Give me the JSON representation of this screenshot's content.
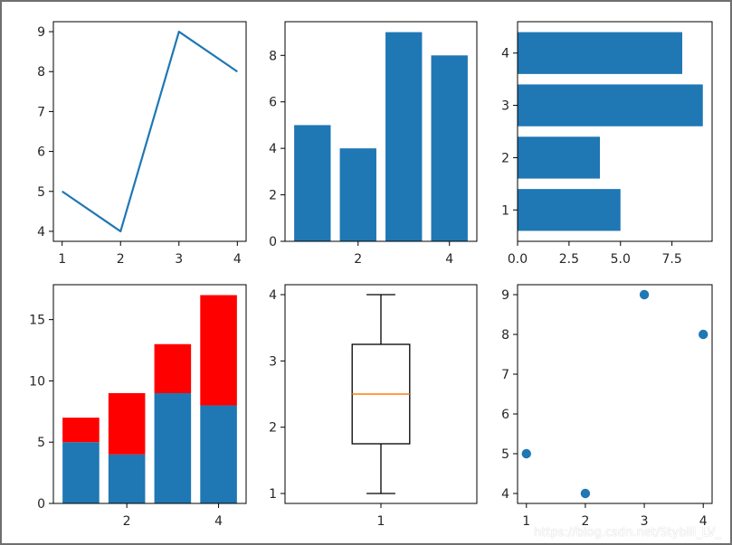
{
  "colors": {
    "primary": "#1f77b4",
    "stack_top": "#ff0000",
    "median": "#ff7f0e",
    "axis": "#000000",
    "text": "#262626"
  },
  "watermark": "https://blog.csdn.net/Stybill_LV_",
  "chart_data": [
    {
      "type": "line",
      "x": [
        1,
        2,
        3,
        4
      ],
      "y": [
        5,
        4,
        9,
        8
      ],
      "xlim": [
        0.85,
        4.15
      ],
      "ylim": [
        3.75,
        9.25
      ],
      "xticks": [
        1,
        2,
        3,
        4
      ],
      "yticks": [
        4,
        5,
        6,
        7,
        8,
        9
      ]
    },
    {
      "type": "bar",
      "categories": [
        1,
        2,
        3,
        4
      ],
      "values": [
        5,
        4,
        9,
        8
      ],
      "xlim": [
        0.4,
        4.6
      ],
      "ylim": [
        0,
        9.45
      ],
      "xticks": [
        2,
        4
      ],
      "yticks": [
        0,
        2,
        4,
        6,
        8
      ]
    },
    {
      "type": "bar",
      "orientation": "horizontal",
      "categories": [
        1,
        2,
        3,
        4
      ],
      "values": [
        5,
        4,
        9,
        8
      ],
      "xlim": [
        0,
        9.45
      ],
      "ylim": [
        0.4,
        4.6
      ],
      "xticks": [
        0.0,
        2.5,
        5.0,
        7.5
      ],
      "yticks": [
        1,
        2,
        3,
        4
      ]
    },
    {
      "type": "bar",
      "stacked": true,
      "categories": [
        1,
        2,
        3,
        4
      ],
      "series": [
        {
          "values": [
            5,
            4,
            9,
            8
          ]
        },
        {
          "values": [
            2,
            5,
            4,
            9
          ]
        }
      ],
      "xlim": [
        0.4,
        4.6
      ],
      "ylim": [
        0,
        17.85
      ],
      "xticks": [
        2,
        4
      ],
      "yticks": [
        0,
        5,
        10,
        15
      ]
    },
    {
      "type": "box",
      "positions": [
        1
      ],
      "whisker_low": 1,
      "q1": 1.75,
      "median": 2.5,
      "q3": 3.25,
      "whisker_high": 4,
      "xlim": [
        0.5,
        1.5
      ],
      "ylim": [
        0.85,
        4.15
      ],
      "xticks": [
        1
      ],
      "yticks": [
        1,
        2,
        3,
        4
      ]
    },
    {
      "type": "scatter",
      "x": [
        1,
        2,
        3,
        4
      ],
      "y": [
        5,
        4,
        9,
        8
      ],
      "xlim": [
        0.85,
        4.15
      ],
      "ylim": [
        3.75,
        9.25
      ],
      "xticks": [
        1,
        2,
        3,
        4
      ],
      "yticks": [
        4,
        5,
        6,
        7,
        8,
        9
      ]
    }
  ]
}
